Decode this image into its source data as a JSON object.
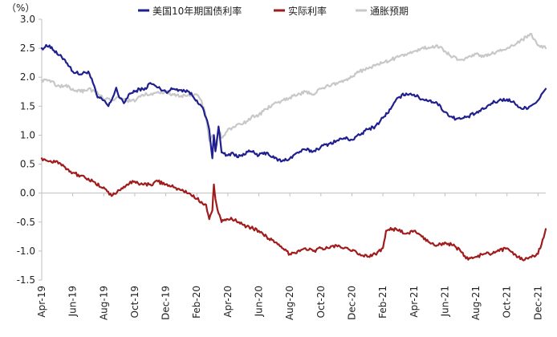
{
  "chart_data": {
    "type": "line",
    "title": "",
    "y_unit": "（%）",
    "xlabel": "",
    "ylabel": "",
    "ylim": [
      -1.5,
      3.0
    ],
    "y_ticks": [
      3.0,
      2.5,
      2.0,
      1.5,
      1.0,
      0.5,
      0.0,
      -0.5,
      -1.0,
      -1.5
    ],
    "y_tick_labels": [
      "3.0",
      "2.5",
      "2.0",
      "1.5",
      "1.0",
      "0.5",
      "0.0",
      "-0.5",
      "-1.0",
      "-1.5"
    ],
    "x_range": [
      0,
      32.5
    ],
    "x_tick_labels": [
      "Apr-19",
      "Jun-19",
      "Aug-19",
      "Oct-19",
      "Dec-19",
      "Feb-20",
      "Apr-20",
      "Jun-20",
      "Aug-20",
      "Oct-20",
      "Dec-20",
      "Feb-21",
      "Apr-21",
      "Jun-21",
      "Aug-21",
      "Oct-21",
      "Dec-21"
    ],
    "x_tick_positions": [
      0,
      2,
      4,
      6,
      8,
      10,
      12,
      14,
      16,
      18,
      20,
      22,
      24,
      26,
      28,
      30,
      32
    ],
    "legend_position": "top",
    "series": [
      {
        "name": "美国10年期国债利率",
        "color": "#1f1f8f",
        "x": [
          0,
          0.5,
          1,
          1.5,
          2,
          2.5,
          3,
          3.3,
          3.6,
          4,
          4.3,
          4.5,
          4.8,
          5,
          5.3,
          5.6,
          6,
          6.3,
          6.6,
          7,
          7.5,
          8,
          8.5,
          9,
          9.5,
          10,
          10.3,
          10.6,
          10.8,
          11,
          11.1,
          11.2,
          11.4,
          11.6,
          12,
          12.3,
          12.6,
          13,
          13.5,
          14,
          14.5,
          15,
          15.5,
          16,
          16.5,
          17,
          17.5,
          18,
          18.5,
          19,
          19.5,
          20,
          20.5,
          21,
          21.5,
          22,
          22.5,
          23,
          23.5,
          24,
          24.5,
          25,
          25.5,
          26,
          26.5,
          27,
          27.5,
          28,
          28.5,
          29,
          29.5,
          30,
          30.5,
          31,
          31.5,
          32,
          32.5
        ],
        "values": [
          2.5,
          2.55,
          2.4,
          2.3,
          2.1,
          2.05,
          2.1,
          1.9,
          1.65,
          1.6,
          1.5,
          1.6,
          1.82,
          1.65,
          1.55,
          1.7,
          1.75,
          1.8,
          1.78,
          1.9,
          1.82,
          1.75,
          1.8,
          1.78,
          1.75,
          1.6,
          1.5,
          1.3,
          1.1,
          0.6,
          1.0,
          0.72,
          1.15,
          0.7,
          0.65,
          0.7,
          0.62,
          0.68,
          0.72,
          0.65,
          0.7,
          0.6,
          0.55,
          0.6,
          0.7,
          0.75,
          0.72,
          0.8,
          0.85,
          0.9,
          0.95,
          0.92,
          1.0,
          1.1,
          1.15,
          1.3,
          1.45,
          1.65,
          1.72,
          1.7,
          1.62,
          1.6,
          1.55,
          1.4,
          1.3,
          1.28,
          1.32,
          1.38,
          1.45,
          1.55,
          1.6,
          1.62,
          1.55,
          1.45,
          1.5,
          1.6,
          1.8
        ]
      },
      {
        "name": "实际利率",
        "color": "#a01c1c",
        "x": [
          0,
          0.5,
          1,
          1.5,
          2,
          2.5,
          3,
          3.5,
          4,
          4.5,
          5,
          5.5,
          6,
          6.5,
          7,
          7.5,
          8,
          8.5,
          9,
          9.5,
          10,
          10.3,
          10.6,
          10.8,
          11,
          11.1,
          11.2,
          11.4,
          11.6,
          12,
          12.5,
          13,
          13.5,
          14,
          14.5,
          15,
          15.5,
          16,
          16.5,
          17,
          17.5,
          18,
          18.5,
          19,
          19.5,
          20,
          20.5,
          21,
          21.5,
          22,
          22.2,
          22.5,
          23,
          23.5,
          24,
          24.5,
          25,
          25.5,
          26,
          26.5,
          27,
          27.5,
          28,
          28.5,
          29,
          29.5,
          30,
          30.5,
          31,
          31.5,
          32,
          32.3,
          32.5
        ],
        "values": [
          0.6,
          0.55,
          0.55,
          0.45,
          0.35,
          0.3,
          0.25,
          0.15,
          0.1,
          -0.05,
          0.05,
          0.15,
          0.2,
          0.15,
          0.15,
          0.2,
          0.15,
          0.1,
          0.05,
          0.0,
          -0.1,
          -0.15,
          -0.2,
          -0.45,
          -0.3,
          0.15,
          -0.1,
          -0.35,
          -0.5,
          -0.45,
          -0.45,
          -0.55,
          -0.6,
          -0.65,
          -0.75,
          -0.85,
          -0.95,
          -1.05,
          -1.0,
          -0.95,
          -1.0,
          -0.95,
          -0.95,
          -0.9,
          -0.95,
          -1.0,
          -1.05,
          -1.1,
          -1.05,
          -0.95,
          -0.65,
          -0.6,
          -0.65,
          -0.7,
          -0.65,
          -0.75,
          -0.85,
          -0.9,
          -0.85,
          -0.9,
          -1.0,
          -1.15,
          -1.1,
          -1.05,
          -1.05,
          -1.0,
          -0.95,
          -1.05,
          -1.15,
          -1.1,
          -1.05,
          -0.8,
          -0.62
        ]
      },
      {
        "name": "通胀预期",
        "color": "#c8c8c8",
        "x": [
          0,
          0.5,
          1,
          1.5,
          2,
          2.5,
          3,
          3.5,
          4,
          4.5,
          5,
          5.5,
          6,
          6.5,
          7,
          7.5,
          8,
          8.5,
          9,
          9.5,
          10,
          10.3,
          10.6,
          10.8,
          11,
          11.2,
          11.4,
          11.6,
          12,
          12.5,
          13,
          13.5,
          14,
          14.5,
          15,
          15.5,
          16,
          16.5,
          17,
          17.5,
          18,
          18.5,
          19,
          19.5,
          20,
          20.5,
          21,
          21.5,
          22,
          22.5,
          23,
          23.5,
          24,
          24.5,
          25,
          25.5,
          26,
          26.5,
          27,
          27.5,
          28,
          28.5,
          29,
          29.5,
          30,
          30.5,
          31,
          31.5,
          32,
          32.5
        ],
        "values": [
          1.95,
          1.95,
          1.85,
          1.85,
          1.8,
          1.75,
          1.8,
          1.75,
          1.62,
          1.6,
          1.65,
          1.6,
          1.58,
          1.7,
          1.7,
          1.75,
          1.75,
          1.7,
          1.68,
          1.7,
          1.7,
          1.6,
          1.3,
          0.9,
          1.0,
          0.85,
          1.1,
          0.95,
          1.1,
          1.15,
          1.2,
          1.3,
          1.35,
          1.45,
          1.55,
          1.6,
          1.65,
          1.7,
          1.75,
          1.7,
          1.8,
          1.85,
          1.9,
          1.95,
          2.0,
          2.1,
          2.15,
          2.2,
          2.25,
          2.3,
          2.35,
          2.38,
          2.45,
          2.5,
          2.5,
          2.55,
          2.45,
          2.35,
          2.3,
          2.35,
          2.4,
          2.35,
          2.4,
          2.45,
          2.5,
          2.55,
          2.65,
          2.75,
          2.55,
          2.5
        ]
      }
    ]
  }
}
